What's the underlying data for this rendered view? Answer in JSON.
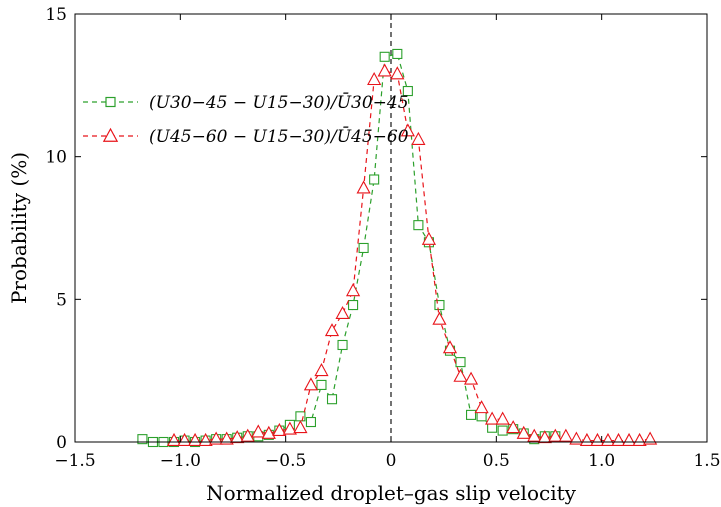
{
  "chart_data": {
    "type": "line",
    "title": "",
    "xlabel": "Normalized droplet–gas slip velocity",
    "ylabel": "Probability (%)",
    "xlim": [
      -1.5,
      1.5
    ],
    "ylim": [
      0,
      15
    ],
    "xticks": [
      -1.5,
      -1.0,
      -0.5,
      0,
      0.5,
      1.0,
      1.5
    ],
    "xtick_labels": [
      "−1.5",
      "−1.0",
      "−0.5",
      "0",
      "0.5",
      "1.0",
      "1.5"
    ],
    "yticks": [
      0,
      5,
      10,
      15
    ],
    "ytick_labels": [
      "0",
      "5",
      "10",
      "15"
    ],
    "grid": false,
    "legend_position": "upper-left",
    "reference_line": {
      "x": 0,
      "style": "dashed",
      "color": "#000000"
    },
    "series": [
      {
        "name": "(U30−45 − U15−30)/Ū30−45",
        "color": "#2ca02c",
        "marker": "square",
        "x": [
          -1.18,
          -1.13,
          -1.08,
          -1.03,
          -0.98,
          -0.93,
          -0.88,
          -0.83,
          -0.78,
          -0.73,
          -0.68,
          -0.63,
          -0.58,
          -0.53,
          -0.48,
          -0.43,
          -0.38,
          -0.33,
          -0.28,
          -0.23,
          -0.18,
          -0.13,
          -0.08,
          -0.03,
          0.03,
          0.08,
          0.13,
          0.18,
          0.23,
          0.28,
          0.33,
          0.38,
          0.43,
          0.48,
          0.53,
          0.58,
          0.63,
          0.68,
          0.73,
          0.78
        ],
        "y": [
          0.1,
          0.0,
          0.0,
          0.0,
          0.05,
          0.0,
          0.05,
          0.1,
          0.1,
          0.15,
          0.2,
          0.2,
          0.25,
          0.4,
          0.6,
          0.9,
          0.7,
          2.0,
          1.5,
          3.4,
          4.8,
          6.8,
          9.2,
          13.5,
          13.6,
          12.3,
          7.6,
          7.0,
          4.8,
          3.2,
          2.8,
          0.95,
          0.9,
          0.5,
          0.4,
          0.45,
          0.3,
          0.1,
          0.2,
          0.2
        ]
      },
      {
        "name": "(U45−60 − U15−30)/Ū45−60",
        "color": "#e8141a",
        "marker": "triangle",
        "x": [
          -1.03,
          -0.98,
          -0.93,
          -0.88,
          -0.83,
          -0.78,
          -0.73,
          -0.68,
          -0.63,
          -0.58,
          -0.53,
          -0.48,
          -0.43,
          -0.38,
          -0.33,
          -0.28,
          -0.23,
          -0.18,
          -0.13,
          -0.08,
          -0.03,
          0.03,
          0.08,
          0.13,
          0.18,
          0.23,
          0.28,
          0.33,
          0.38,
          0.43,
          0.48,
          0.53,
          0.58,
          0.63,
          0.68,
          0.73,
          0.78,
          0.83,
          0.88,
          0.93,
          0.98,
          1.03,
          1.08,
          1.13,
          1.18,
          1.23
        ],
        "y": [
          0.05,
          0.05,
          0.05,
          0.05,
          0.1,
          0.1,
          0.15,
          0.2,
          0.35,
          0.3,
          0.4,
          0.45,
          0.5,
          2.0,
          2.5,
          3.9,
          4.5,
          5.3,
          8.9,
          12.7,
          13.0,
          12.9,
          10.9,
          10.6,
          7.1,
          4.3,
          3.3,
          2.3,
          2.2,
          1.2,
          0.8,
          0.8,
          0.5,
          0.3,
          0.2,
          0.15,
          0.2,
          0.2,
          0.1,
          0.05,
          0.05,
          0.05,
          0.05,
          0.05,
          0.05,
          0.1
        ]
      }
    ]
  }
}
